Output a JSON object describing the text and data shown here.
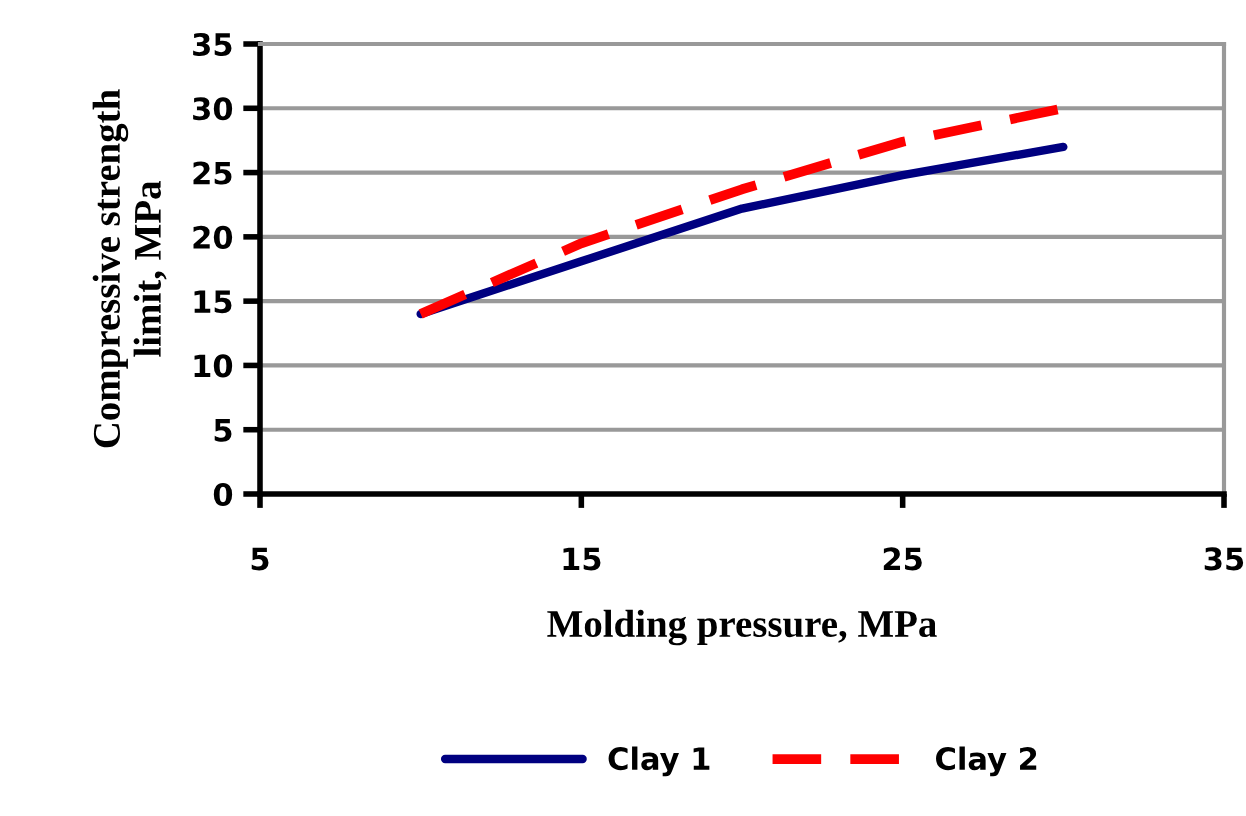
{
  "chart_data": {
    "type": "line",
    "xlabel": "Molding pressure, MPa",
    "ylabel": "Compressive strength\nlimit, MPa",
    "x": [
      10,
      15,
      20,
      25,
      30
    ],
    "series": [
      {
        "name": "Clay 1",
        "color": "#000080",
        "values": [
          14,
          18.1,
          22.2,
          24.8,
          27
        ],
        "line_style": "solid"
      },
      {
        "name": "Clay 2",
        "color": "#ff0000",
        "values": [
          14,
          19.5,
          23.7,
          27.4,
          30
        ],
        "line_style": "dashed"
      }
    ],
    "xlim": [
      5,
      35
    ],
    "xticks": [
      5,
      15,
      25,
      35
    ],
    "ylim": [
      0,
      35
    ],
    "yticks": [
      0,
      5,
      10,
      15,
      20,
      25,
      30,
      35
    ],
    "grid": "y",
    "legend": "bottom",
    "marker": "none"
  }
}
